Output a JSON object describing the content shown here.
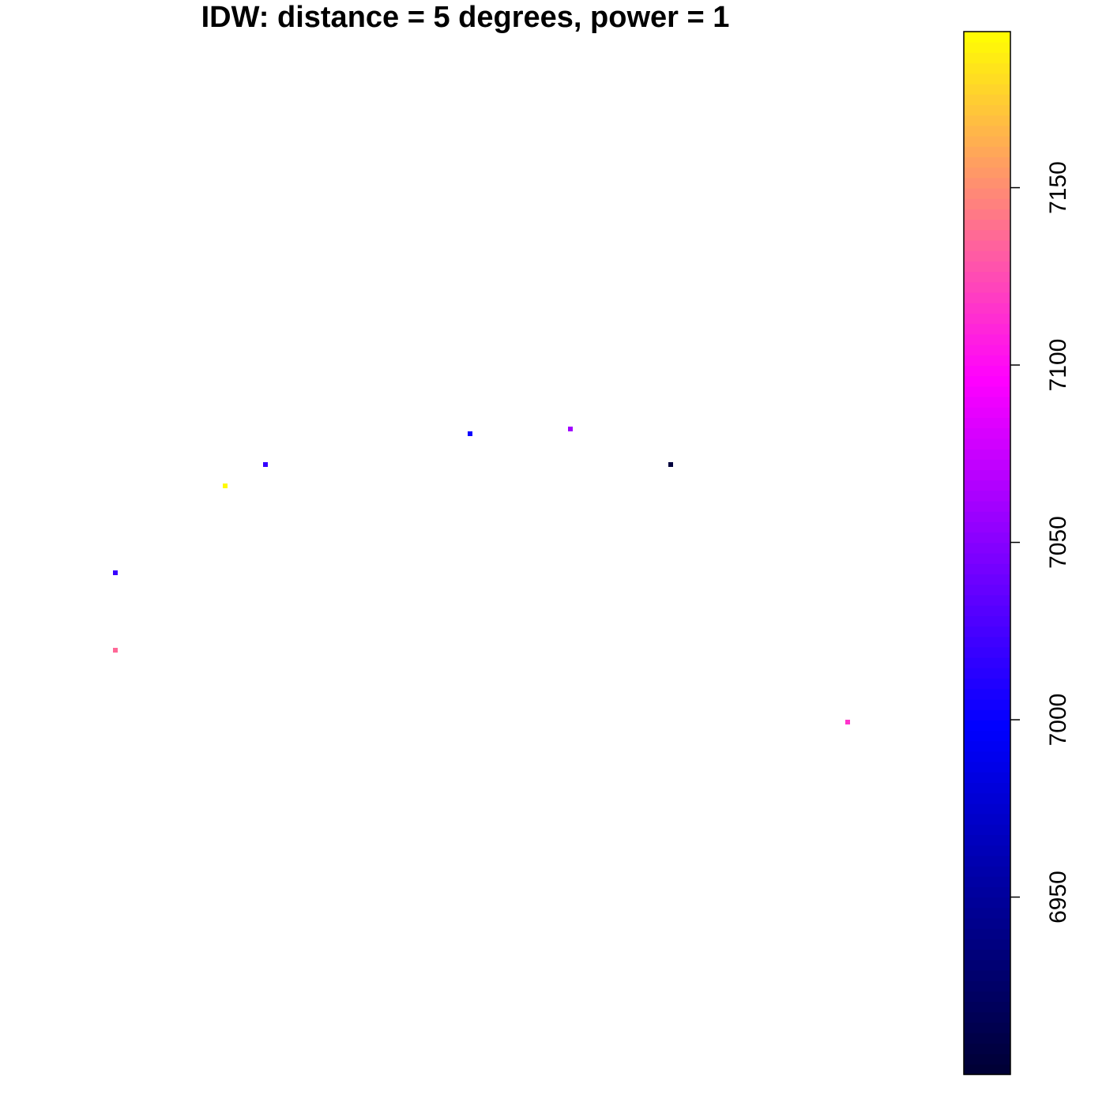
{
  "chart_data": {
    "type": "heatmap",
    "title": "IDW: distance = 5 degrees, power = 1",
    "xlabel": "",
    "ylabel": "",
    "grid": false,
    "legend": "colorbar-right",
    "colorbar": {
      "range": [
        6900,
        7194
      ],
      "ticks": [
        6950,
        7000,
        7050,
        7100,
        7150
      ],
      "tick_labels": [
        "6950",
        "7000",
        "7050",
        "7100",
        "7150"
      ],
      "palette": [
        "#000033",
        "#0000ff",
        "#ff00ff",
        "#ffff00"
      ],
      "levels": 100
    },
    "cells": [
      {
        "value": 7020
      },
      {
        "value": 7136
      },
      {
        "value": 7192
      },
      {
        "value": 7018
      },
      {
        "value": 7003
      },
      {
        "value": 7060
      },
      {
        "value": 6905
      },
      {
        "value": 7116
      }
    ]
  }
}
